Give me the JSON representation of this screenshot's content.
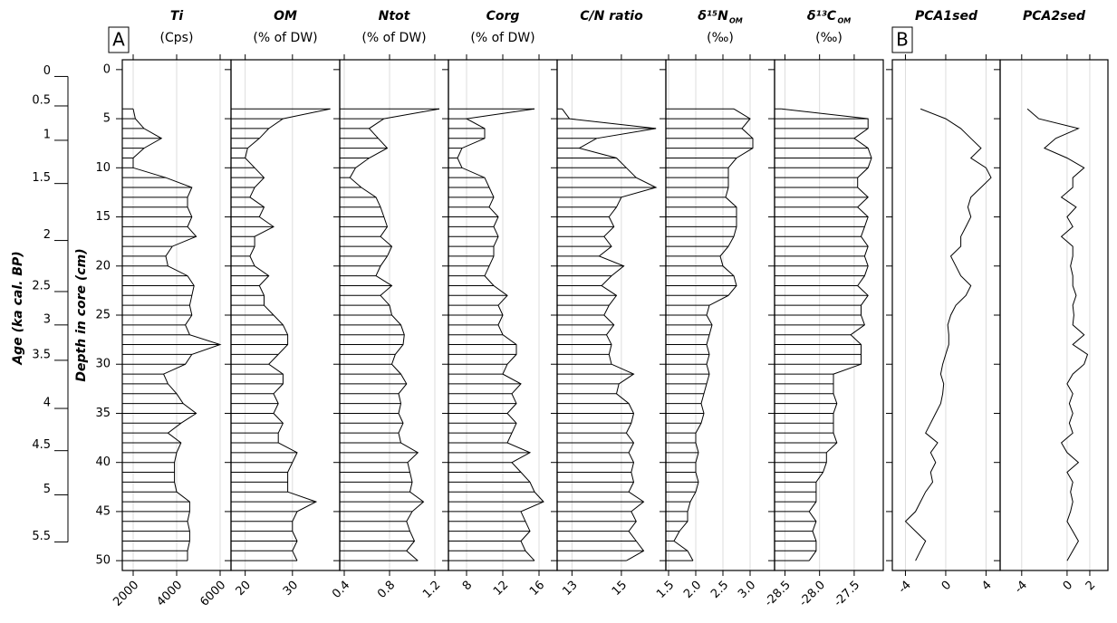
{
  "chart_data": {
    "type": "profile",
    "ylabel": "Depth in core (cm)",
    "ylim": [
      -1,
      51
    ],
    "yticks": [
      0,
      5,
      10,
      15,
      20,
      25,
      30,
      35,
      40,
      45,
      50
    ],
    "age_label": "Age (ka cal. BP)",
    "age_ticks": [
      0,
      0.5,
      1,
      1.5,
      2,
      2.5,
      3,
      3.5,
      4,
      4.5,
      5,
      5.5
    ],
    "age_tick_depths": [
      0.7,
      3.7,
      7.2,
      11.6,
      17.4,
      22.6,
      26.0,
      29.6,
      34.5,
      38.8,
      43.3,
      48.1
    ],
    "depth": [
      4,
      5,
      6,
      7,
      8,
      9,
      10,
      11,
      12,
      13,
      14,
      15,
      16,
      17,
      18,
      19,
      20,
      21,
      22,
      23,
      24,
      25,
      26,
      27,
      28,
      29,
      30,
      31,
      32,
      33,
      34,
      35,
      36,
      37,
      38,
      39,
      40,
      41,
      42,
      43,
      44,
      45,
      46,
      47,
      48,
      49,
      50
    ],
    "color": "#000000",
    "grid": true,
    "groups": [
      {
        "label": "A",
        "panels": [
          {
            "title": "Ti",
            "subtitle": "(Cps)",
            "bars": true,
            "xlim": [
              1500,
              6500
            ],
            "xticks": [
              2000,
              4000,
              6000
            ],
            "values": [
              2000,
              2100,
              2500,
              3300,
              2500,
              2000,
              2000,
              3500,
              4700,
              4500,
              4500,
              4700,
              4500,
              4900,
              3800,
              3500,
              3600,
              4500,
              4800,
              4700,
              4600,
              4700,
              4400,
              4600,
              6000,
              4700,
              4400,
              3400,
              3600,
              4000,
              4300,
              4900,
              4200,
              3600,
              4200,
              4000,
              3900,
              3900,
              3900,
              4000,
              4600,
              4600,
              4500,
              4600,
              4600,
              4500,
              4500
            ]
          },
          {
            "title": "OM",
            "subtitle": "(% of DW)",
            "bars": true,
            "xlim": [
              17,
              40
            ],
            "xticks": [
              20,
              30
            ],
            "values": [
              38,
              28,
              25,
              23,
              20.5,
              20,
              22,
              24,
              22,
              21,
              24,
              23,
              26,
              22,
              22,
              21,
              22,
              25,
              23,
              24,
              24,
              26,
              28,
              29,
              29,
              27,
              25,
              28,
              28,
              26,
              27,
              26,
              28,
              27,
              27,
              31,
              30,
              29,
              29,
              29,
              35,
              31,
              30,
              30,
              31,
              30,
              31
            ]
          },
          {
            "title": "Ntot",
            "subtitle": "(% of DW)",
            "bars": true,
            "xlim": [
              0.36,
              1.32
            ],
            "xticks": [
              0.4,
              0.8,
              1.2
            ],
            "values": [
              1.24,
              0.75,
              0.62,
              0.7,
              0.78,
              0.62,
              0.5,
              0.45,
              0.55,
              0.68,
              0.72,
              0.75,
              0.78,
              0.72,
              0.82,
              0.78,
              0.72,
              0.68,
              0.82,
              0.72,
              0.8,
              0.82,
              0.9,
              0.93,
              0.92,
              0.85,
              0.82,
              0.9,
              0.95,
              0.88,
              0.9,
              0.88,
              0.92,
              0.88,
              0.9,
              1.05,
              0.96,
              0.98,
              1.0,
              0.98,
              1.1,
              1.0,
              0.95,
              0.98,
              1.02,
              0.95,
              1.05
            ]
          },
          {
            "title": "Corg",
            "subtitle": "(% of DW)",
            "bars": true,
            "xlim": [
              6,
              18
            ],
            "xticks": [
              8,
              12,
              16
            ],
            "values": [
              15.5,
              8,
              10,
              10,
              7.5,
              7,
              7.5,
              10,
              10.5,
              11,
              10.5,
              11.5,
              11,
              11.5,
              11,
              11,
              10.5,
              10,
              11,
              12.5,
              11.5,
              12,
              11.5,
              12,
              13.5,
              13.5,
              12.5,
              12,
              14,
              13,
              13.5,
              12.5,
              13.5,
              13,
              12.5,
              15,
              13,
              14,
              15,
              15.5,
              16.5,
              14,
              14.5,
              15,
              14,
              14.5,
              15.5
            ]
          },
          {
            "title": "C/N ratio",
            "bars": true,
            "xlim": [
              12.4,
              16.8
            ],
            "xticks": [
              13,
              15
            ],
            "values": [
              12.6,
              12.9,
              16.4,
              14,
              13.3,
              14.8,
              15.2,
              15.6,
              16.4,
              15,
              14.8,
              14.5,
              14.7,
              14.3,
              14.6,
              14.1,
              15.1,
              14.6,
              14.2,
              14.8,
              14.5,
              14.3,
              14.7,
              14.4,
              14.6,
              14.5,
              14.6,
              15.5,
              14.9,
              14.8,
              15.3,
              15.5,
              15.4,
              15.2,
              15.5,
              15.3,
              15.5,
              15.4,
              15.5,
              15.3,
              15.9,
              15.4,
              15.6,
              15.3,
              15.6,
              15.9,
              15.2
            ]
          },
          {
            "title": "δ¹⁵N",
            "title_sub": "OM",
            "subtitle": "(‰)",
            "bars": true,
            "xlim": [
              1.45,
              3.45
            ],
            "xticks": [
              {
                "value": 1.5,
                "label": "1.5"
              },
              {
                "value": 2,
                "label": "2.0"
              },
              {
                "value": 2.5,
                "label": "2.5"
              },
              {
                "value": 3,
                "label": "3.0"
              }
            ],
            "values": [
              2.7,
              3.0,
              2.85,
              3.05,
              3.05,
              2.75,
              2.6,
              2.6,
              2.6,
              2.55,
              2.75,
              2.75,
              2.75,
              2.7,
              2.6,
              2.45,
              2.5,
              2.7,
              2.75,
              2.6,
              2.25,
              2.2,
              2.3,
              2.25,
              2.2,
              2.25,
              2.2,
              2.25,
              2.2,
              2.15,
              2.1,
              2.15,
              2.1,
              2.0,
              2.0,
              2.05,
              2.0,
              2.0,
              2.05,
              2.0,
              1.9,
              1.85,
              1.85,
              1.7,
              1.6,
              1.85,
              1.95
            ]
          },
          {
            "title": "δ¹³C",
            "title_sub": "OM",
            "subtitle": "(‰)",
            "bars": true,
            "xlim": [
              -28.65,
              -27.08
            ],
            "xticks": [
              -28.5,
              {
                "value": -28,
                "label": "-28.0"
              },
              -27.5
            ],
            "values": [
              -28.55,
              -27.3,
              -27.3,
              -27.5,
              -27.3,
              -27.25,
              -27.3,
              -27.45,
              -27.45,
              -27.3,
              -27.45,
              -27.3,
              -27.35,
              -27.4,
              -27.3,
              -27.35,
              -27.3,
              -27.35,
              -27.45,
              -27.3,
              -27.4,
              -27.4,
              -27.35,
              -27.55,
              -27.4,
              -27.4,
              -27.4,
              -27.8,
              -27.8,
              -27.8,
              -27.75,
              -27.8,
              -27.8,
              -27.8,
              -27.75,
              -27.9,
              -27.9,
              -27.95,
              -28.05,
              -28.05,
              -28.05,
              -28.15,
              -28.05,
              -28.1,
              -28.05,
              -28.05,
              -28.15
            ]
          }
        ]
      },
      {
        "label": "B",
        "panels": [
          {
            "title": "PCA1sed",
            "bars": false,
            "xlim": [
              -5.3,
              5.4
            ],
            "xticks": [
              -4,
              0,
              4
            ],
            "values": [
              -2.5,
              0,
              1.5,
              2.5,
              3.5,
              2.5,
              4,
              4.5,
              3.5,
              2.5,
              2.2,
              2.5,
              2,
              1.5,
              1.5,
              0.5,
              1,
              1.5,
              2.5,
              2,
              1,
              0.5,
              0.2,
              0.3,
              0.3,
              0,
              -0.3,
              -0.5,
              -0.2,
              -0.3,
              -0.5,
              -1,
              -1.5,
              -2,
              -0.8,
              -1.5,
              -1,
              -1.5,
              -1.3,
              -2,
              -2.5,
              -3,
              -4,
              -3,
              -2,
              -2.5,
              -3
            ]
          },
          {
            "title": "PCA2sed",
            "bars": false,
            "xlim": [
              -5.9,
              3.6
            ],
            "xticks": [
              -4,
              0,
              2
            ],
            "values": [
              -3.5,
              -2.5,
              1,
              -1,
              -2,
              0,
              1.5,
              0.5,
              0.5,
              -0.5,
              0.8,
              0,
              0.5,
              -0.5,
              0.5,
              0.5,
              0.3,
              0.5,
              0.5,
              0.8,
              0.5,
              0.6,
              0.5,
              1.5,
              0.5,
              1.8,
              1.5,
              0.5,
              0,
              0.5,
              0.2,
              0.5,
              0.2,
              0.5,
              -0.5,
              0,
              1,
              0,
              0.5,
              0.3,
              0.5,
              0.3,
              0,
              0.5,
              1,
              0.5,
              0
            ]
          }
        ]
      }
    ]
  }
}
